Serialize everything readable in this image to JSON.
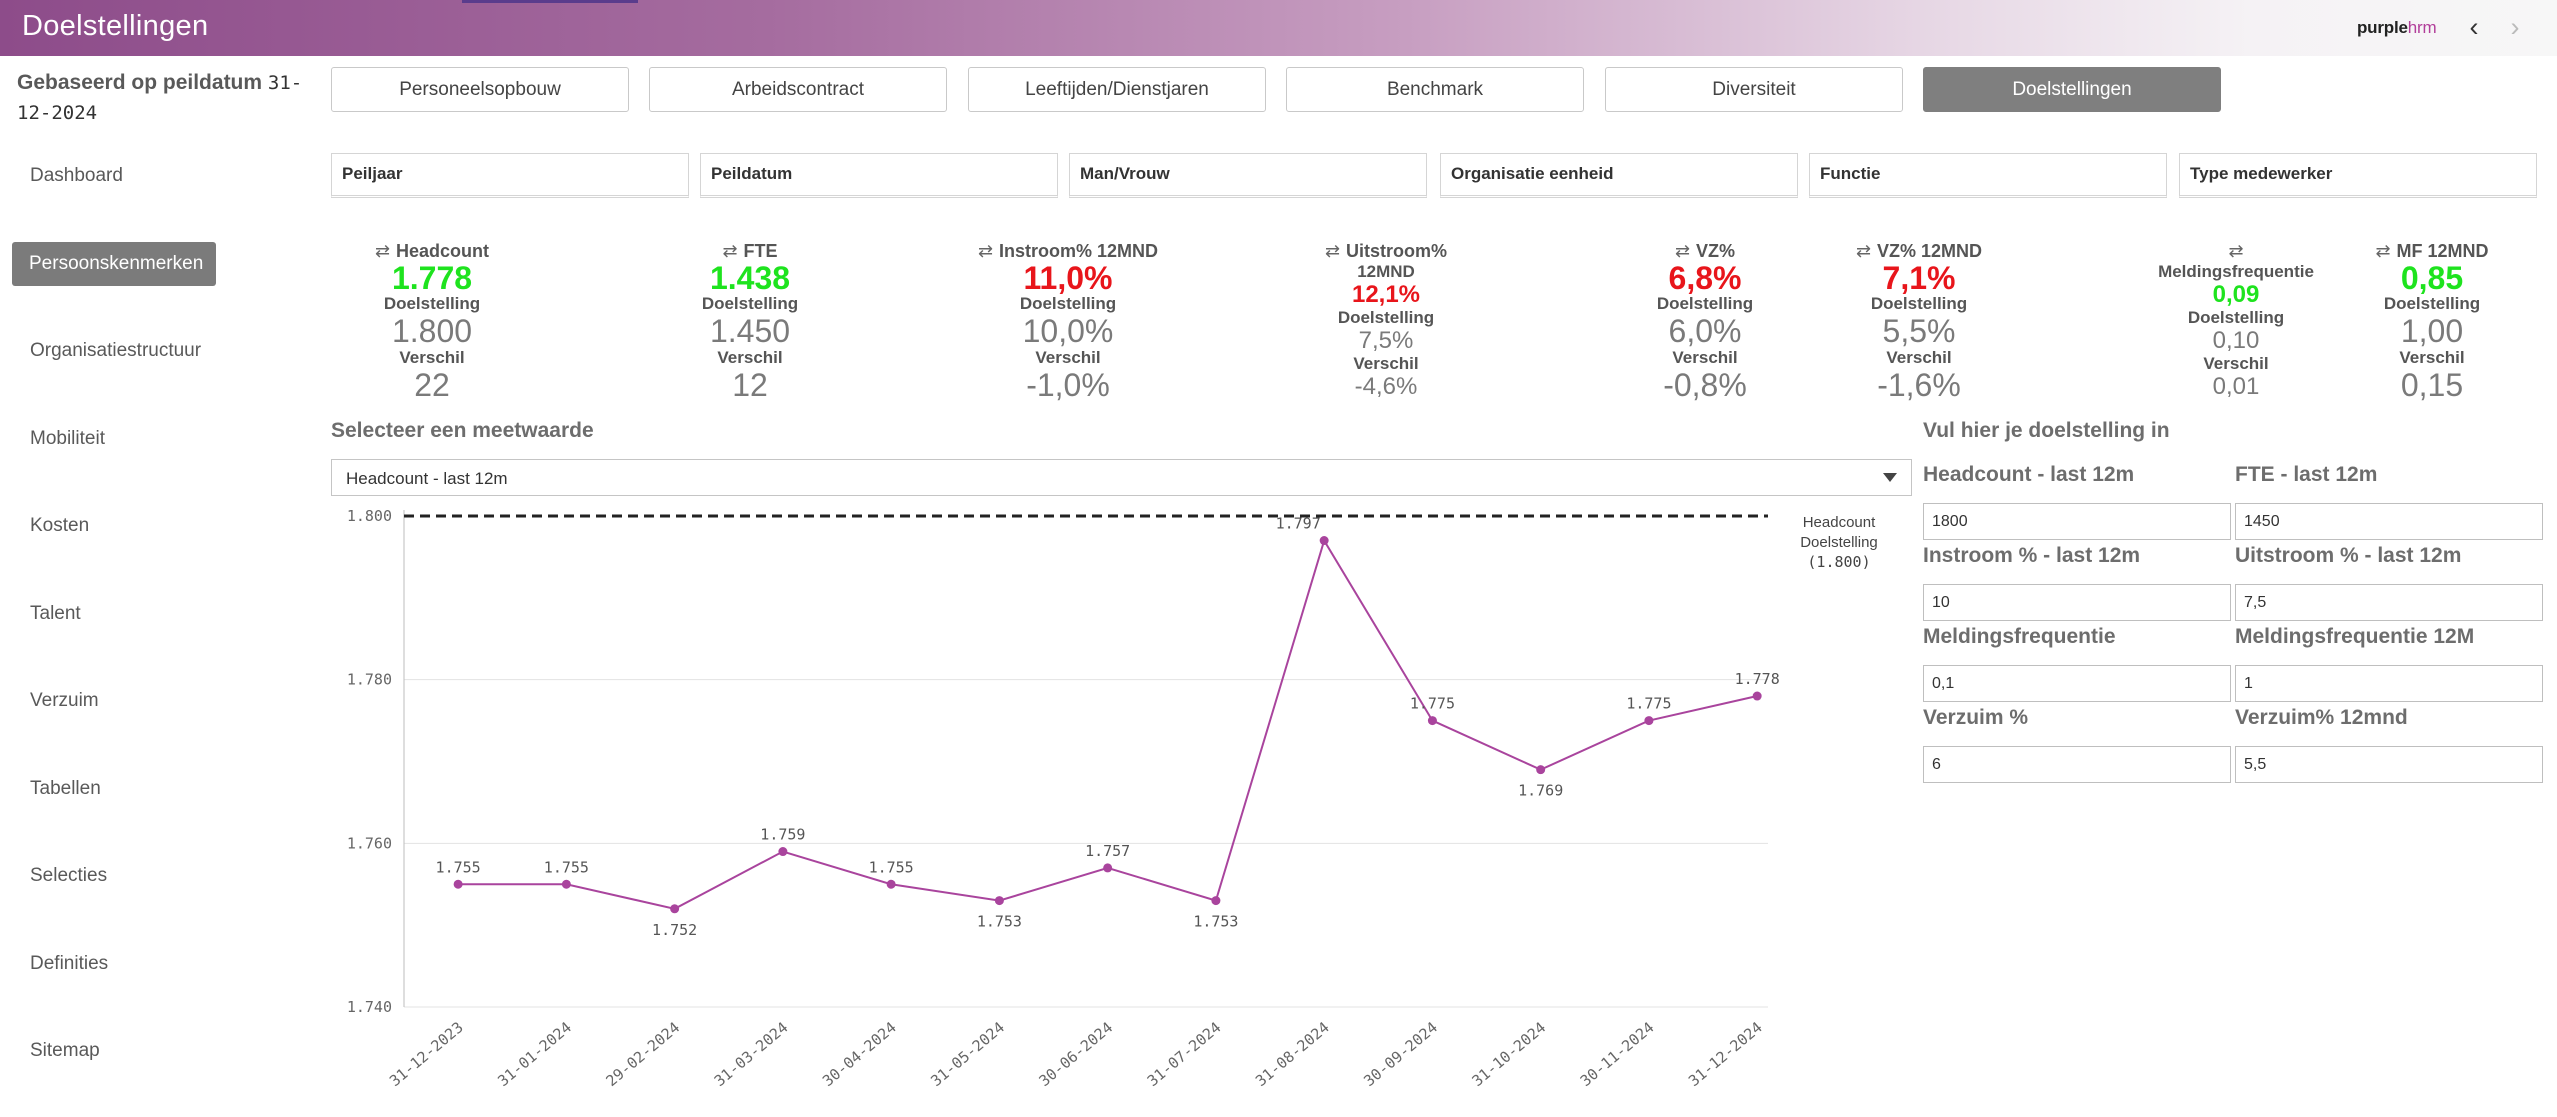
{
  "header": {
    "title": "Doelstellingen",
    "brand_part1": "purple",
    "brand_part2": "hrm",
    "prev_icon": "‹",
    "next_icon": "›"
  },
  "sidebar": {
    "basis_label": "Gebaseerd op peildatum",
    "basis_date_part1": "31-",
    "basis_date_part2": "12-2024",
    "items": [
      {
        "label": "Dashboard"
      },
      {
        "label": "Persoonskenmerken"
      },
      {
        "label": "Organisatiestructuur"
      },
      {
        "label": "Mobiliteit"
      },
      {
        "label": "Kosten"
      },
      {
        "label": "Talent"
      },
      {
        "label": "Verzuim"
      },
      {
        "label": "Tabellen"
      },
      {
        "label": "Selecties"
      },
      {
        "label": "Definities"
      },
      {
        "label": "Sitemap"
      }
    ]
  },
  "tabs": [
    {
      "label": "Personeelsopbouw"
    },
    {
      "label": "Arbeidscontract"
    },
    {
      "label": "Leeftijden/Dienstjaren"
    },
    {
      "label": "Benchmark"
    },
    {
      "label": "Diversiteit"
    },
    {
      "label": "Doelstellingen"
    }
  ],
  "filters": [
    {
      "label": "Peiljaar"
    },
    {
      "label": "Peildatum"
    },
    {
      "label": "Man/Vrouw"
    },
    {
      "label": "Organisatie eenheid"
    },
    {
      "label": "Functie"
    },
    {
      "label": "Type medewerker"
    }
  ],
  "kpis": {
    "switch_icon": "⇄",
    "goal_label": "Doelstelling",
    "diff_label": "Verschil",
    "headcount": {
      "title": "Headcount",
      "value": "1.778",
      "goal": "1.800",
      "diff": "22"
    },
    "fte": {
      "title": "FTE",
      "value": "1.438",
      "goal": "1.450",
      "diff": "12"
    },
    "instroom": {
      "title": "Instroom% 12MND",
      "value": "11,0%",
      "goal": "10,0%",
      "diff": "-1,0%"
    },
    "uitstroom": {
      "title_1": "Uitstroom%",
      "title_2": "12MND",
      "value": "12,1%",
      "goal": "7,5%",
      "diff": "-4,6%"
    },
    "vz": {
      "title": "VZ%",
      "value": "6,8%",
      "goal": "6,0%",
      "diff": "-0,8%"
    },
    "vz12": {
      "title": "VZ% 12MND",
      "value": "7,1%",
      "goal": "5,5%",
      "diff": "-1,6%"
    },
    "mf": {
      "title": "Meldingsfrequentie",
      "value": "0,09",
      "goal": "0,10",
      "diff": "0,01"
    },
    "mf12": {
      "title": "MF 12MND",
      "value": "0,85",
      "goal": "1,00",
      "diff": "0,15"
    }
  },
  "chart_section": {
    "title": "Selecteer een meetwaarde",
    "selected": "Headcount - last 12m"
  },
  "chart_data": {
    "type": "line",
    "x": [
      "31-12-2023",
      "31-01-2024",
      "29-02-2024",
      "31-03-2024",
      "30-04-2024",
      "31-05-2024",
      "30-06-2024",
      "31-07-2024",
      "31-08-2024",
      "30-09-2024",
      "31-10-2024",
      "30-11-2024",
      "31-12-2024"
    ],
    "series": [
      {
        "name": "Headcount",
        "values": [
          1755,
          1755,
          1752,
          1759,
          1755,
          1753,
          1757,
          1753,
          1797,
          1775,
          1769,
          1775,
          1778
        ],
        "color": "#a9449d"
      }
    ],
    "value_labels": [
      "1.755",
      "1.755",
      "1.752",
      "1.759",
      "1.755",
      "1.753",
      "1.757",
      "1.753",
      "1.797",
      "1.775",
      "1.769",
      "1.775",
      "1.778"
    ],
    "target": {
      "value": 1800,
      "label_1": "Headcount",
      "label_2": "Doelstelling",
      "label_3": "(1.800)"
    },
    "ylim": [
      1740,
      1800
    ],
    "yticks": [
      1740,
      1760,
      1780,
      1800
    ],
    "ytick_labels": [
      "1.740",
      "1.760",
      "1.780",
      "1.800"
    ],
    "grid": true
  },
  "goals": {
    "title": "Vul hier je doelstelling in",
    "fields": [
      {
        "label": "Headcount - last 12m",
        "value": "1800"
      },
      {
        "label": "FTE - last 12m",
        "value": "1450"
      },
      {
        "label": "Instroom % - last 12m",
        "value": "10"
      },
      {
        "label": "Uitstroom % - last 12m",
        "value": "7,5"
      },
      {
        "label": "Meldingsfrequentie",
        "value": "0,1"
      },
      {
        "label": "Meldingsfrequentie 12M",
        "value": "1"
      },
      {
        "label": "Verzuim %",
        "value": "6"
      },
      {
        "label": "Verzuim% 12mnd",
        "value": "5,5"
      }
    ]
  }
}
